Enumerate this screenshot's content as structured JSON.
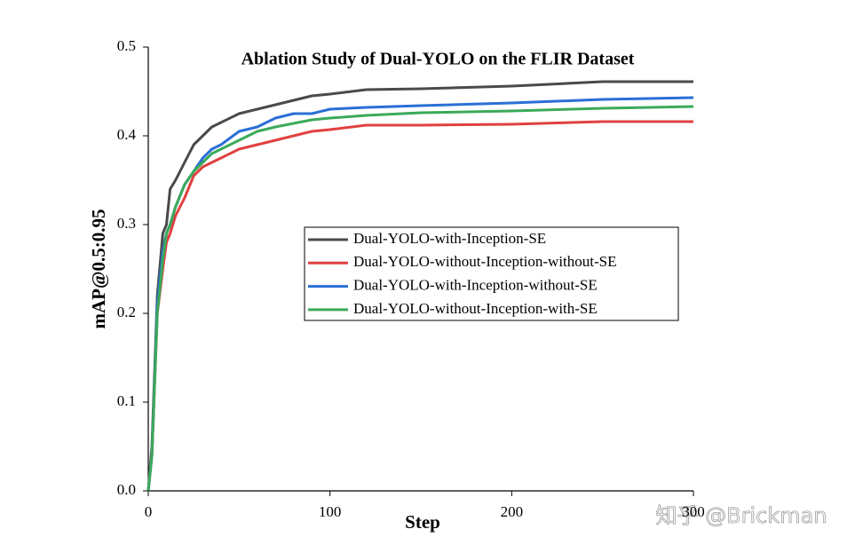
{
  "chart_data": {
    "type": "line",
    "title": "Ablation Study of Dual-YOLO on the FLIR Dataset",
    "x_label": "Step",
    "y_label": "mAP@0.5:0.95",
    "x": [
      0,
      2,
      5,
      8,
      10,
      12,
      15,
      20,
      25,
      30,
      35,
      40,
      50,
      60,
      70,
      80,
      90,
      100,
      120,
      150,
      200,
      250,
      300
    ],
    "series": [
      {
        "name": "Dual-YOLO-with-Inception-SE",
        "color": "#4a4a4a",
        "values": [
          0,
          0.05,
          0.22,
          0.29,
          0.3,
          0.34,
          0.35,
          0.37,
          0.39,
          0.4,
          0.41,
          0.415,
          0.425,
          0.43,
          0.435,
          0.44,
          0.445,
          0.447,
          0.452,
          0.453,
          0.456,
          0.461,
          0.461
        ]
      },
      {
        "name": "Dual-YOLO-without-Inception-without-SE",
        "color": "#e04040",
        "values": [
          0,
          0.04,
          0.2,
          0.25,
          0.28,
          0.29,
          0.31,
          0.33,
          0.355,
          0.365,
          0.37,
          0.375,
          0.385,
          0.39,
          0.395,
          0.4,
          0.405,
          0.407,
          0.412,
          0.412,
          0.413,
          0.416,
          0.416
        ]
      },
      {
        "name": "Dual-YOLO-with-Inception-without-SE",
        "color": "#2a6fd6",
        "values": [
          0,
          0.04,
          0.21,
          0.27,
          0.29,
          0.3,
          0.32,
          0.345,
          0.36,
          0.375,
          0.385,
          0.39,
          0.405,
          0.41,
          0.42,
          0.425,
          0.425,
          0.43,
          0.432,
          0.434,
          0.437,
          0.441,
          0.443
        ]
      },
      {
        "name": "Dual-YOLO-without-Inception-with-SE",
        "color": "#3aaa5a",
        "values": [
          0,
          0.04,
          0.2,
          0.26,
          0.29,
          0.3,
          0.32,
          0.345,
          0.36,
          0.37,
          0.38,
          0.385,
          0.395,
          0.405,
          0.41,
          0.414,
          0.418,
          0.42,
          0.423,
          0.426,
          0.428,
          0.431,
          0.433
        ]
      }
    ],
    "xlim": [
      0,
      300
    ],
    "xticks": [
      0,
      100,
      200,
      300
    ],
    "ylim": [
      0,
      0.5
    ],
    "yticks": [
      {
        "value": 0,
        "label": "0.0"
      },
      0.1,
      0.2,
      0.3,
      0.4,
      0.5
    ],
    "watermark": "知乎 @Brickman"
  }
}
